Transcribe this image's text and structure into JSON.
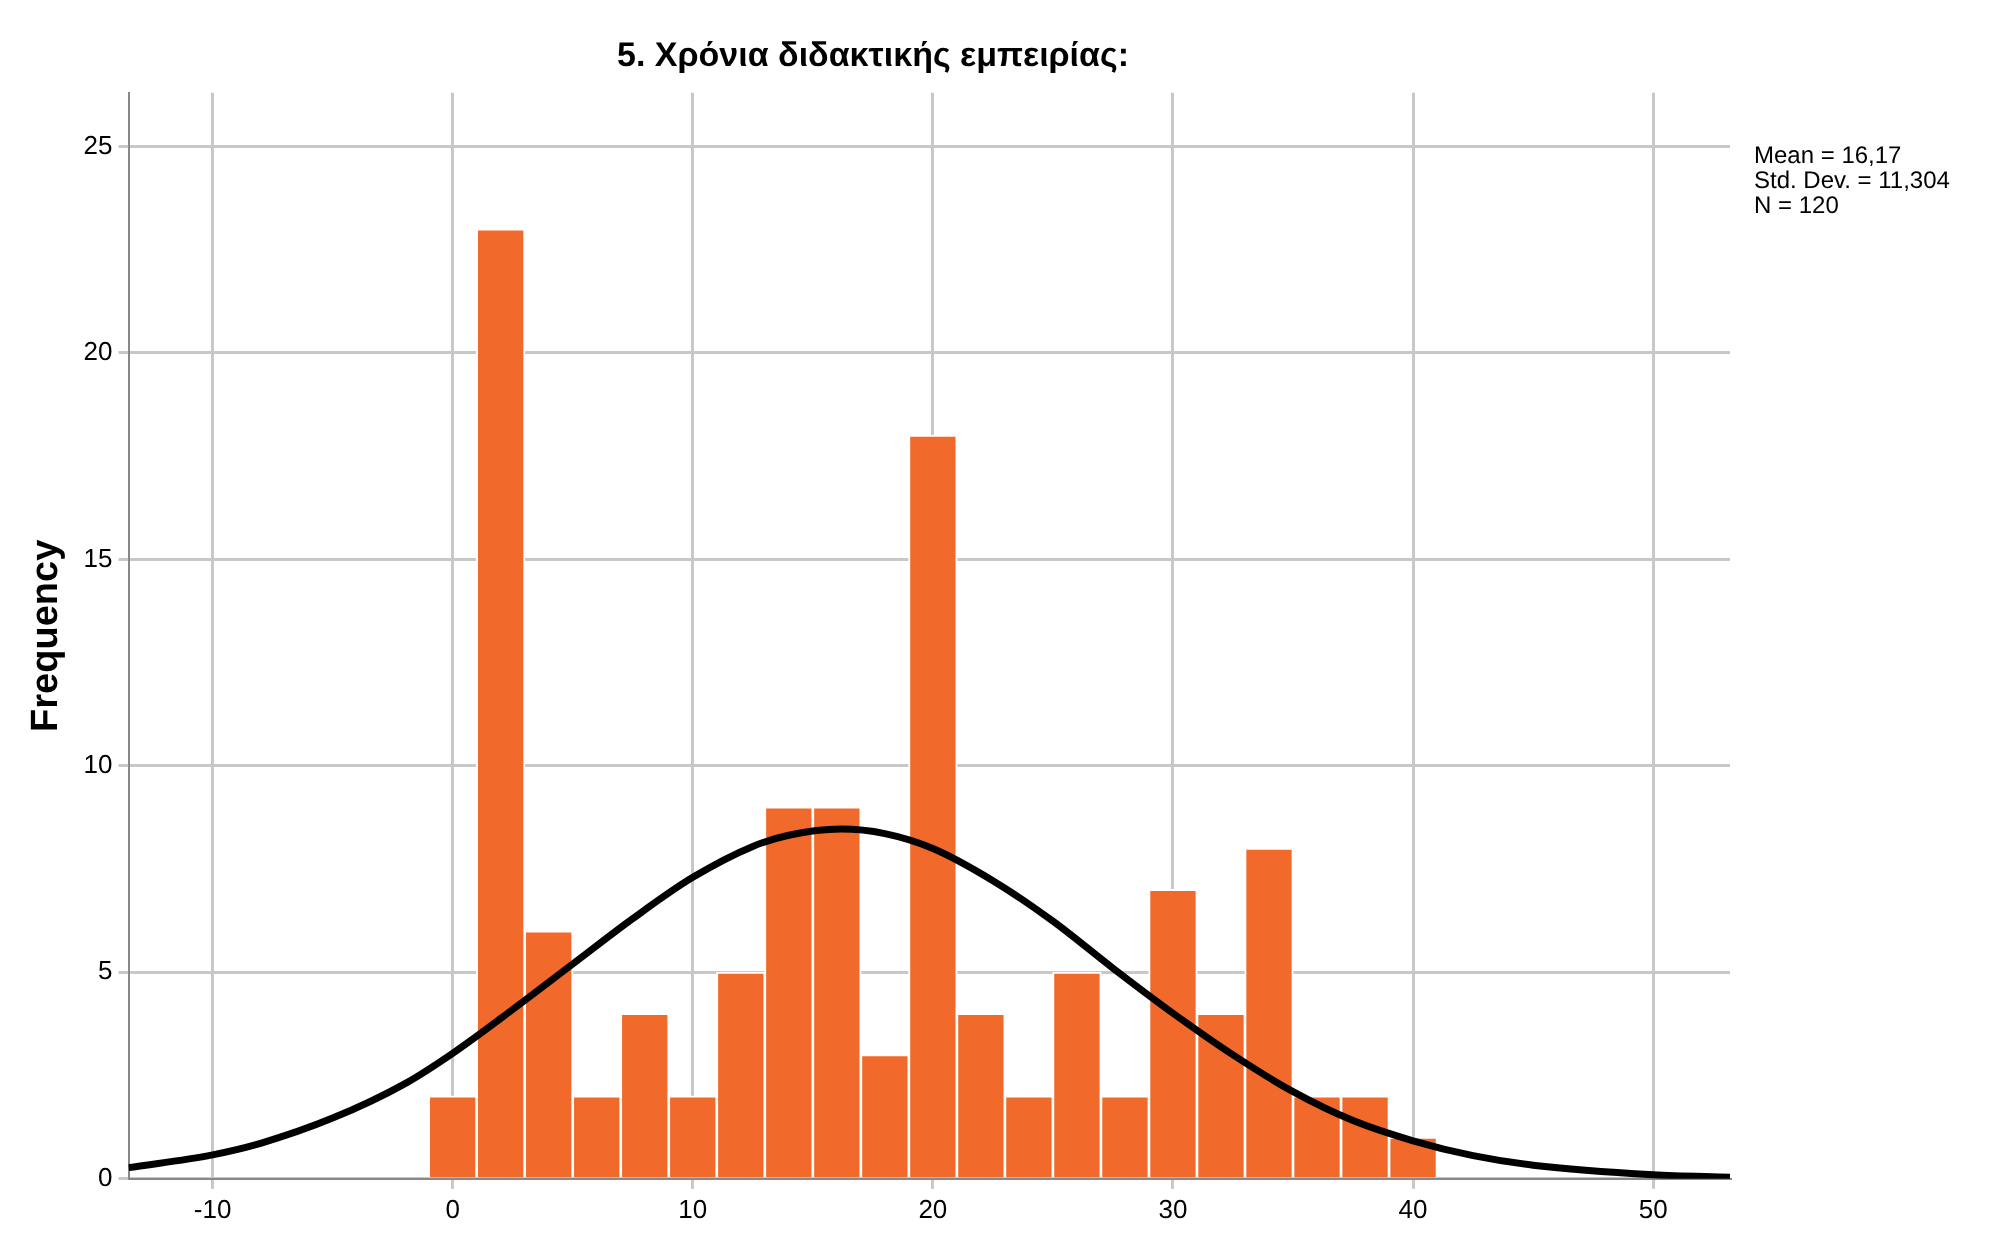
{
  "chart_data": {
    "type": "histogram",
    "title": "5. Χρόνια διδακτικής εμπειρίας:",
    "ylabel": "Frequency",
    "bins": [
      -1,
      1,
      3,
      5,
      7,
      9,
      11,
      13,
      15,
      17,
      19,
      21,
      23,
      25,
      27,
      29,
      31,
      33,
      35,
      37,
      39,
      41
    ],
    "values": [
      2,
      23,
      6,
      2,
      4,
      2,
      5,
      9,
      9,
      3,
      18,
      4,
      2,
      5,
      2,
      7,
      4,
      8,
      2,
      2,
      1
    ],
    "color": "#f26a2b",
    "series": [
      {
        "type": "line",
        "color": "#000000",
        "x": [
          -13.5,
          -10,
          -8,
          -5,
          -2,
          0,
          2.5,
          5,
          7.5,
          10,
          12.5,
          14,
          16.17,
          18,
          20,
          22.5,
          25,
          27.5,
          30,
          32.5,
          35,
          37.5,
          40,
          42.5,
          45,
          50,
          53.2
        ],
        "values": [
          0.27,
          0.58,
          0.86,
          1.47,
          2.3,
          3.04,
          4.1,
          5.2,
          6.3,
          7.3,
          8.05,
          8.32,
          8.47,
          8.36,
          8.0,
          7.22,
          6.24,
          5.1,
          4.01,
          3.0,
          2.11,
          1.41,
          0.92,
          0.56,
          0.33,
          0.1,
          0.04
        ]
      }
    ],
    "xlim": [
      -13.5,
      53.2
    ],
    "xticks": [
      -10,
      0,
      10,
      20,
      30,
      40,
      50
    ],
    "ylim": [
      0,
      26.3
    ],
    "yticks": [
      0,
      5,
      10,
      15,
      20,
      25
    ],
    "grid": true,
    "annotations": [
      "Mean = 16,17",
      "Std. Dev. = 11,304",
      "N = 120"
    ]
  }
}
